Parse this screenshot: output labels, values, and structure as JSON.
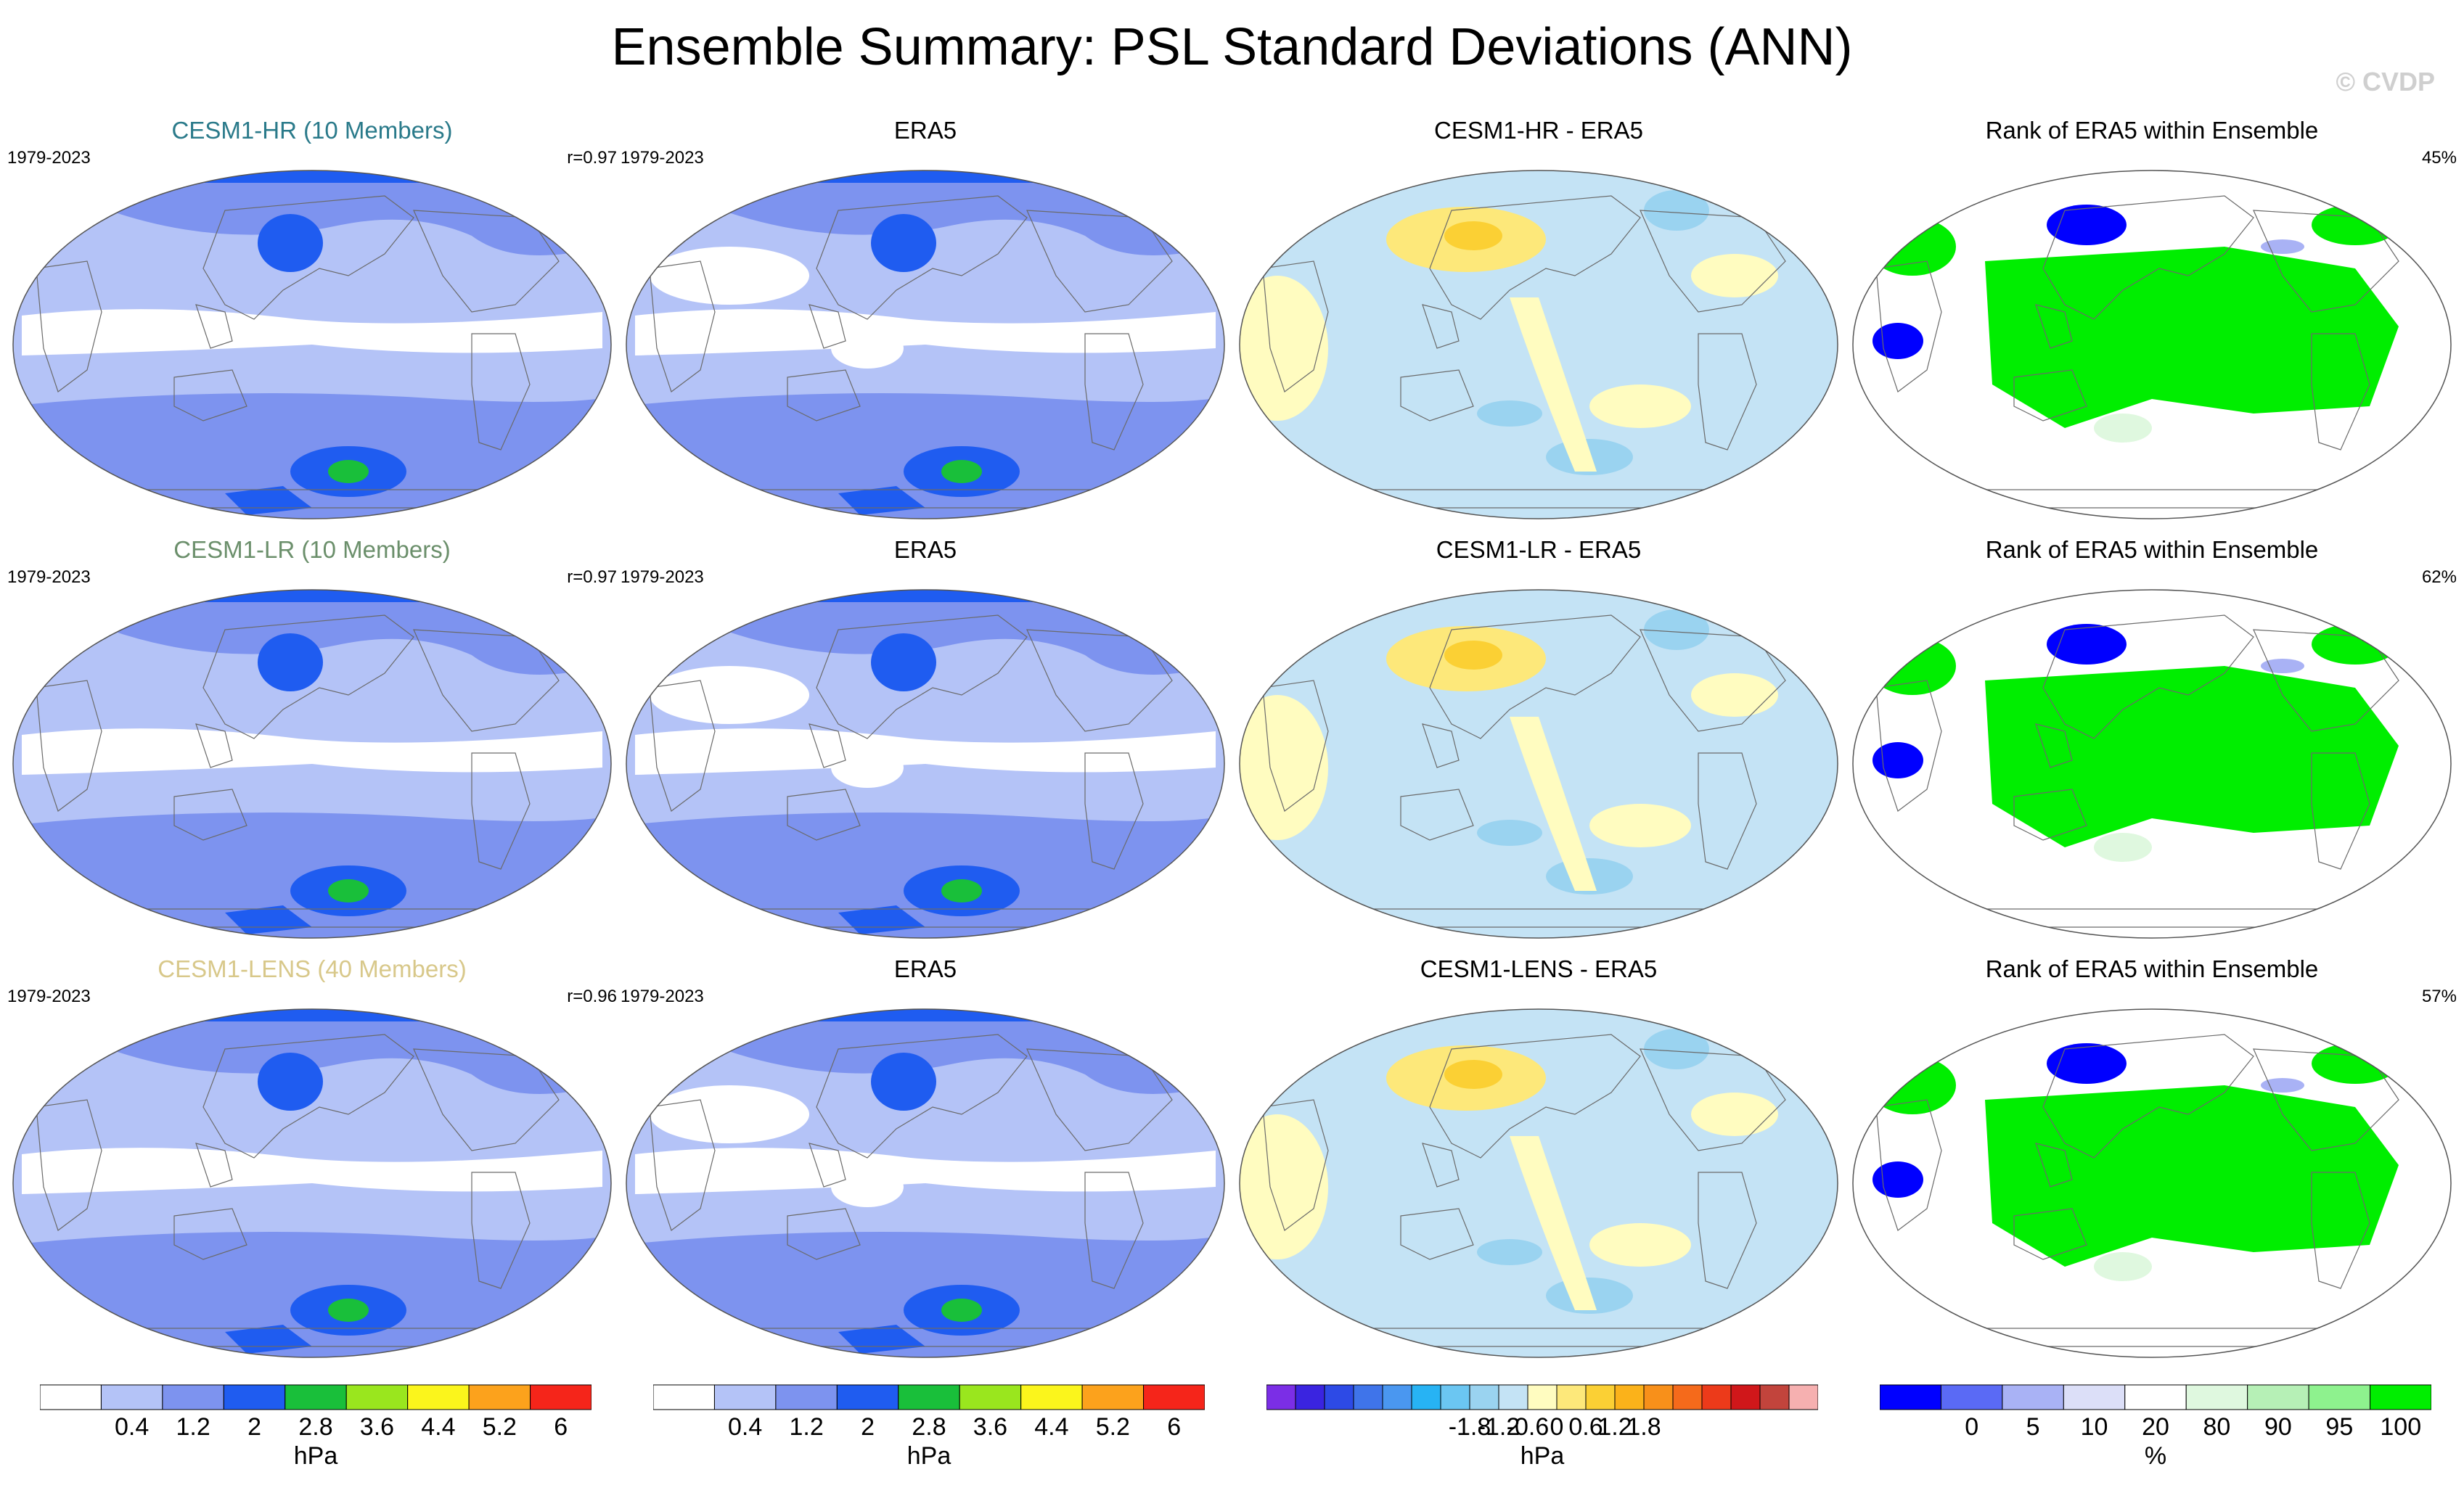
{
  "figure_title": "Ensemble Summary: PSL Standard Deviations (ANN)",
  "watermark": "© CVDP",
  "chart_data": {
    "type": "heatmap",
    "title": "Ensemble Summary: PSL Standard Deviations (ANN)",
    "rows": [
      {
        "ensemble_title": "CESM1-HR (10 Members)",
        "ensemble_color": "#2a7a8a",
        "period": "1979-2023",
        "pattern_corr": "r=0.97",
        "obs_title": "ERA5",
        "obs_period": "1979-2023",
        "diff_title": "CESM1-HR - ERA5",
        "rank_title": "Rank of ERA5 within Ensemble",
        "rank_pct": "45%"
      },
      {
        "ensemble_title": "CESM1-LR (10 Members)",
        "ensemble_color": "#6b8f6b",
        "period": "1979-2023",
        "pattern_corr": "r=0.97",
        "obs_title": "ERA5",
        "obs_period": "1979-2023",
        "diff_title": "CESM1-LR - ERA5",
        "rank_title": "Rank of ERA5 within Ensemble",
        "rank_pct": "62%"
      },
      {
        "ensemble_title": "CESM1-LENS (40 Members)",
        "ensemble_color": "#d8c88a",
        "period": "1979-2023",
        "pattern_corr": "r=0.96",
        "obs_title": "ERA5",
        "obs_period": "1979-2023",
        "diff_title": "CESM1-LENS - ERA5",
        "rank_title": "Rank of ERA5 within Ensemble",
        "rank_pct": "57%"
      }
    ],
    "colorbars": {
      "stddev": {
        "unit": "hPa",
        "ticks": [
          "0.4",
          "1.2",
          "2",
          "2.8",
          "3.6",
          "4.4",
          "5.2",
          "6"
        ],
        "colors": [
          "#ffffff",
          "#b4c3f7",
          "#7d93ef",
          "#1f5cf0",
          "#19bf3a",
          "#9ae61e",
          "#fbf51c",
          "#fca21c",
          "#f5251a"
        ]
      },
      "difference": {
        "unit": "hPa",
        "ticks": [
          "-1.8",
          "-1.2",
          "-0.6",
          "0",
          "0.6",
          "1.2",
          "1.8"
        ],
        "colors": [
          "#7b2ee6",
          "#3a24e0",
          "#2d4ae6",
          "#3f74ea",
          "#4a97f0",
          "#27b3f4",
          "#6bc6f2",
          "#9ad3f0",
          "#c4e3f5",
          "#fffcc0",
          "#fde87a",
          "#fbd034",
          "#fbb21a",
          "#f8901a",
          "#f56a1b",
          "#ec3a1a",
          "#d0171a",
          "#c2443c",
          "#f6b0b0"
        ]
      },
      "rank": {
        "unit": "%",
        "ticks": [
          "0",
          "5",
          "10",
          "20",
          "80",
          "90",
          "95",
          "100"
        ],
        "colors": [
          "#0000ff",
          "#5a6af5",
          "#a9b2f5",
          "#dcdff8",
          "#ffffff",
          "#dff8df",
          "#b6f0b6",
          "#8ef28e",
          "#00ee00"
        ]
      }
    }
  }
}
